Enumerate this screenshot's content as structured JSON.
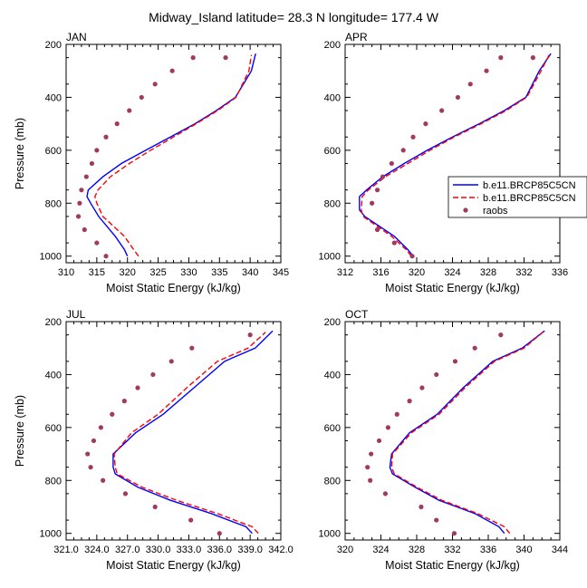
{
  "title": "Midway_Island  latitude= 28.3 N longitude= 177.4 W",
  "legend": {
    "placement": "right of APR panel",
    "entries": [
      {
        "label": "b.e11.BRCP85C5CN",
        "color": "#0000ff",
        "style": "solid"
      },
      {
        "label": "b.e11.BRCP85C5CN",
        "color": "#ff0000",
        "style": "dashed"
      },
      {
        "label": "raobs",
        "color": "#a03a60",
        "style": "marker"
      }
    ]
  },
  "chart_data": [
    {
      "type": "line",
      "panel_label": "JAN",
      "xlabel": "Moist Static Energy (kJ/kg)",
      "ylabel": "Pressure (mb)",
      "xlim": [
        310,
        345
      ],
      "xticks": [
        310,
        315,
        320,
        325,
        330,
        335,
        340,
        345
      ],
      "xtick_labels": [
        "310",
        "315",
        "320",
        "325",
        "330",
        "335",
        "340",
        "345"
      ],
      "ylim": [
        1025,
        200
      ],
      "yticks": [
        200,
        400,
        600,
        800,
        1000
      ],
      "ytick_labels": [
        "200",
        "400",
        "600",
        "800",
        "1000"
      ],
      "series": [
        {
          "name": "b.e11.BRCP85C5CN",
          "color": "#0000ff",
          "style": "solid",
          "x": [
            320.0,
            319.5,
            318.0,
            315.3,
            314.0,
            313.4,
            313.6,
            316.0,
            319.0,
            323.0,
            327.0,
            331.0,
            334.5,
            337.6,
            340.2,
            340.9
          ],
          "y": [
            1000,
            975,
            925,
            850,
            800,
            775,
            750,
            700,
            650,
            600,
            550,
            500,
            450,
            400,
            300,
            235
          ]
        },
        {
          "name": "b.e11.BRCP85C5CN",
          "color": "#ff0000",
          "style": "dashed",
          "x": [
            321.8,
            321.0,
            319.5,
            316.0,
            315.0,
            314.7,
            315.2,
            317.2,
            320.3,
            323.8,
            327.5,
            331.2,
            334.7,
            337.7,
            339.8,
            340.2
          ],
          "y": [
            1000,
            975,
            925,
            850,
            800,
            775,
            750,
            700,
            650,
            600,
            550,
            500,
            450,
            400,
            300,
            240
          ]
        },
        {
          "name": "raobs",
          "color": "#a03a60",
          "style": "marker",
          "x": [
            316.5,
            315.0,
            313.0,
            312.0,
            312.2,
            312.5,
            313.3,
            314.2,
            315.0,
            316.5,
            318.3,
            320.3,
            322.3,
            324.5,
            327.3,
            330.7,
            336.0
          ],
          "y": [
            1000,
            950,
            900,
            850,
            800,
            750,
            700,
            650,
            600,
            550,
            500,
            450,
            400,
            350,
            300,
            250,
            250
          ]
        }
      ]
    },
    {
      "type": "line",
      "panel_label": "APR",
      "xlabel": "Moist Static Energy (kJ/kg)",
      "ylabel": "",
      "xlim": [
        312,
        336
      ],
      "xticks": [
        312,
        316,
        320,
        324,
        328,
        332,
        336
      ],
      "xtick_labels": [
        "312",
        "316",
        "320",
        "324",
        "328",
        "332",
        "336"
      ],
      "ylim": [
        1025,
        200
      ],
      "yticks": [
        200,
        400,
        600,
        800,
        1000
      ],
      "ytick_labels": [
        "200",
        "400",
        "600",
        "800",
        "1000"
      ],
      "series": [
        {
          "name": "b.e11.BRCP85C5CN",
          "color": "#0000ff",
          "style": "solid",
          "x": [
            319.6,
            319.0,
            317.5,
            314.2,
            313.6,
            313.6,
            314.4,
            316.2,
            318.6,
            321.2,
            324.0,
            327.0,
            329.8,
            332.2,
            333.7,
            335.0
          ],
          "y": [
            1000,
            975,
            925,
            850,
            825,
            775,
            750,
            700,
            650,
            600,
            550,
            500,
            450,
            400,
            300,
            235
          ]
        },
        {
          "name": "b.e11.BRCP85C5CN",
          "color": "#ff0000",
          "style": "dashed",
          "x": [
            319.4,
            318.8,
            317.2,
            314.0,
            313.8,
            313.9,
            314.6,
            316.5,
            319.0,
            321.5,
            324.2,
            327.2,
            330.0,
            332.3,
            333.9,
            334.8
          ],
          "y": [
            1000,
            975,
            925,
            850,
            825,
            775,
            750,
            700,
            650,
            600,
            550,
            500,
            450,
            400,
            300,
            240
          ]
        },
        {
          "name": "raobs",
          "color": "#a03a60",
          "style": "marker",
          "x": [
            319.5,
            317.5,
            315.6,
            315.0,
            315.6,
            316.2,
            317.2,
            318.5,
            319.6,
            321.0,
            322.8,
            324.6,
            326.0,
            327.8,
            329.4,
            333.0
          ],
          "y": [
            1000,
            950,
            900,
            800,
            750,
            700,
            650,
            600,
            550,
            500,
            450,
            400,
            350,
            300,
            250,
            250
          ]
        }
      ]
    },
    {
      "type": "line",
      "panel_label": "JUL",
      "xlabel": "Moist Static Energy (kJ/kg)",
      "ylabel": "Pressure (mb)",
      "xlim": [
        321,
        342
      ],
      "xticks": [
        321,
        324,
        327,
        330,
        333,
        336,
        339,
        342
      ],
      "xtick_labels": [
        "321.0",
        "324.0",
        "327.0",
        "330.0",
        "333.0",
        "336.0",
        "339.0",
        "342.0"
      ],
      "ylim": [
        1025,
        200
      ],
      "yticks": [
        200,
        400,
        600,
        800,
        1000
      ],
      "ytick_labels": [
        "200",
        "400",
        "600",
        "800",
        "1000"
      ],
      "series": [
        {
          "name": "b.e11.BRCP85C5CN",
          "color": "#0000ff",
          "style": "solid",
          "x": [
            339.2,
            338.6,
            335.2,
            331.2,
            328.0,
            325.8,
            325.6,
            325.6,
            327.8,
            330.5,
            333.5,
            336.5,
            339.5,
            341.2
          ],
          "y": [
            1000,
            975,
            925,
            875,
            825,
            775,
            750,
            700,
            620,
            550,
            450,
            350,
            300,
            235
          ]
        },
        {
          "name": "b.e11.BRCP85C5CN",
          "color": "#ff0000",
          "style": "dashed",
          "x": [
            339.8,
            339.2,
            335.8,
            331.8,
            328.4,
            326.0,
            325.8,
            325.7,
            327.4,
            330.0,
            332.8,
            335.8,
            338.8,
            340.5
          ],
          "y": [
            1000,
            975,
            925,
            875,
            825,
            775,
            750,
            700,
            620,
            550,
            450,
            350,
            300,
            240
          ]
        },
        {
          "name": "raobs",
          "color": "#a03a60",
          "style": "marker",
          "x": [
            336.0,
            333.2,
            329.7,
            326.8,
            324.6,
            323.4,
            323.1,
            323.7,
            324.4,
            325.5,
            326.7,
            328.0,
            329.5,
            331.3,
            333.3,
            339.0
          ],
          "y": [
            1000,
            950,
            900,
            850,
            800,
            750,
            700,
            650,
            600,
            550,
            500,
            450,
            400,
            350,
            300,
            250
          ]
        }
      ]
    },
    {
      "type": "line",
      "panel_label": "OCT",
      "xlabel": "Moist Static Energy (kJ/kg)",
      "ylabel": "",
      "xlim": [
        320,
        344
      ],
      "xticks": [
        320,
        324,
        328,
        332,
        336,
        340,
        344
      ],
      "xtick_labels": [
        "320",
        "324",
        "328",
        "332",
        "336",
        "340",
        "344"
      ],
      "ylim": [
        1025,
        200
      ],
      "yticks": [
        200,
        400,
        600,
        800,
        1000
      ],
      "ytick_labels": [
        "200",
        "400",
        "600",
        "800",
        "1000"
      ],
      "series": [
        {
          "name": "b.e11.BRCP85C5CN",
          "color": "#0000ff",
          "style": "solid",
          "x": [
            337.8,
            337.2,
            334.5,
            330.5,
            327.8,
            325.3,
            325.0,
            325.2,
            327.2,
            330.3,
            333.2,
            336.5,
            339.8,
            342.3
          ],
          "y": [
            1000,
            975,
            925,
            875,
            825,
            775,
            750,
            700,
            620,
            550,
            450,
            350,
            300,
            235
          ]
        },
        {
          "name": "b.e11.BRCP85C5CN",
          "color": "#ff0000",
          "style": "dashed",
          "x": [
            338.4,
            337.8,
            334.8,
            330.8,
            328.0,
            325.5,
            325.2,
            325.3,
            327.4,
            330.5,
            333.4,
            336.7,
            340.0,
            342.1
          ],
          "y": [
            1000,
            975,
            925,
            875,
            825,
            775,
            750,
            700,
            620,
            550,
            450,
            350,
            300,
            240
          ]
        },
        {
          "name": "raobs",
          "color": "#a03a60",
          "style": "marker",
          "x": [
            332.2,
            330.2,
            328.5,
            324.5,
            322.8,
            322.5,
            322.9,
            323.8,
            324.8,
            325.8,
            327.2,
            328.6,
            330.2,
            332.3,
            334.5,
            337.4
          ],
          "y": [
            1000,
            950,
            900,
            850,
            800,
            750,
            700,
            650,
            600,
            550,
            500,
            450,
            400,
            350,
            300,
            250
          ]
        }
      ]
    }
  ]
}
